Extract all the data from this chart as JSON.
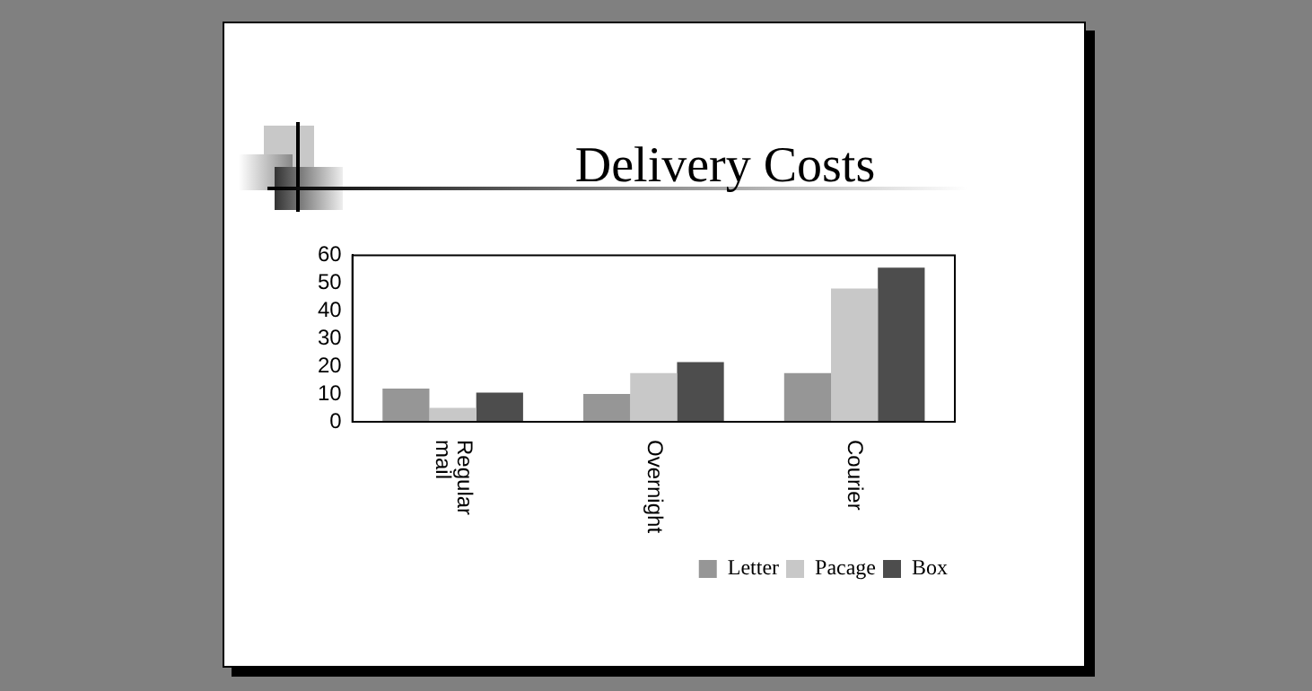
{
  "chart_data": {
    "type": "bar",
    "title": "Delivery Costs",
    "categories": [
      "Regular mail",
      "Overnight",
      "Courier"
    ],
    "series": [
      {
        "name": "Letter",
        "color": "#969696",
        "values": [
          12,
          10,
          17.5
        ]
      },
      {
        "name": "Pacage",
        "color": "#c8c8c8",
        "values": [
          5,
          17.5,
          48
        ]
      },
      {
        "name": "Box",
        "color": "#4d4d4d",
        "values": [
          10.5,
          21.5,
          55.5
        ]
      }
    ],
    "ylim": [
      0,
      60
    ],
    "yticks": [
      0,
      10,
      20,
      30,
      40,
      50,
      60
    ],
    "grid": false,
    "legend": "bottom right"
  }
}
